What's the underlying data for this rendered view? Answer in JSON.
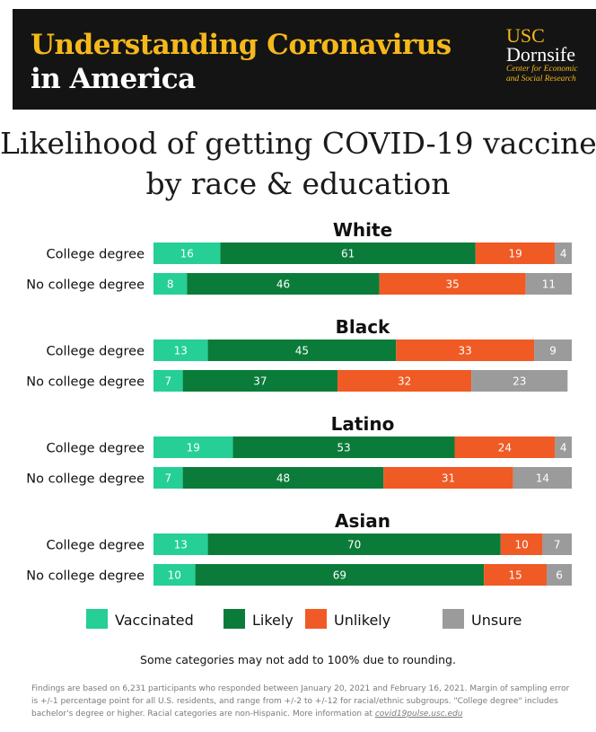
{
  "header": {
    "title_line1": "Understanding Coronavirus",
    "title_line2": "in America",
    "logo_usc": "USC",
    "logo_dornsife": "Dornsife",
    "logo_center_line1": "Center for Economic",
    "logo_center_line2": "and Social Research"
  },
  "colors": {
    "header_bg": "#141414",
    "title_yellow": "#f5b81b",
    "vaccinated": "#25cf95",
    "likely": "#0b7b3a",
    "unlikely": "#f05a24",
    "unsure": "#9b9b9b"
  },
  "chart_data": {
    "type": "bar",
    "orientation": "horizontal",
    "stacked": true,
    "title_line1": "Likelihood of getting COVID-19 vaccine,",
    "title_line2": "by race & education",
    "legend_position": "bottom",
    "legend": [
      "Vaccinated",
      "Likely",
      "Unlikely",
      "Unsure"
    ],
    "groups": [
      {
        "name": "White",
        "rows": [
          {
            "label": "College degree",
            "values": [
              16,
              61,
              19,
              4
            ]
          },
          {
            "label": "No college degree",
            "values": [
              8,
              46,
              35,
              11
            ]
          }
        ]
      },
      {
        "name": "Black",
        "rows": [
          {
            "label": "College degree",
            "values": [
              13,
              45,
              33,
              9
            ]
          },
          {
            "label": "No college degree",
            "values": [
              7,
              37,
              32,
              23
            ]
          }
        ]
      },
      {
        "name": "Latino",
        "rows": [
          {
            "label": "College degree",
            "values": [
              19,
              53,
              24,
              4
            ]
          },
          {
            "label": "No college degree",
            "values": [
              7,
              48,
              31,
              14
            ]
          }
        ]
      },
      {
        "name": "Asian",
        "rows": [
          {
            "label": "College degree",
            "values": [
              13,
              70,
              10,
              7
            ]
          },
          {
            "label": "No college degree",
            "values": [
              10,
              69,
              15,
              6
            ]
          }
        ]
      }
    ]
  },
  "note": "Some categories may not add to 100% due to rounding.",
  "footnote": {
    "text": "Findings are based on 6,231 participants who responded between January 20, 2021 and February 16, 2021. Margin of sampling error is +/-1 percentage point for all U.S. residents, and range from +/-2 to +/-12 for racial/ethnic subgroups. \"College degree\" includes bachelor's degree or higher. Racial categories are non-Hispanic. More information at",
    "link": "covid19pulse.usc.edu"
  }
}
